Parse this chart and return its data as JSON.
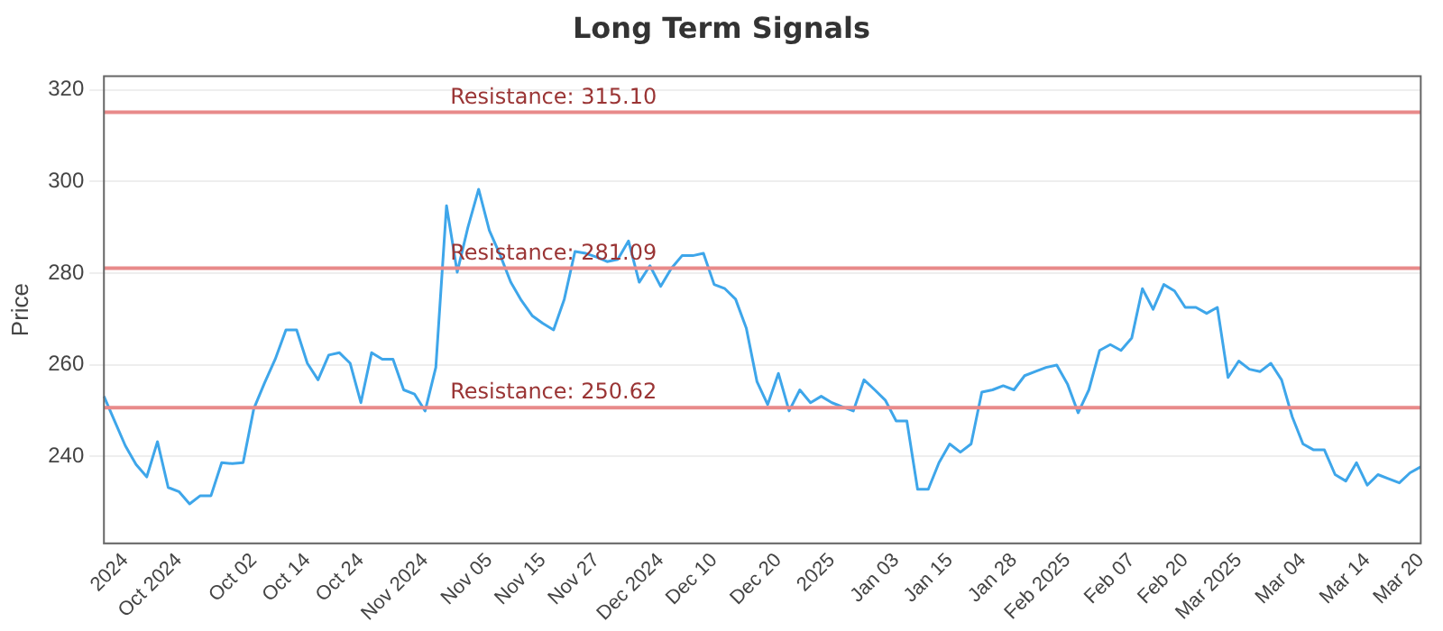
{
  "chart_data": {
    "type": "line",
    "title": "Long Term Signals",
    "ylabel": "Price",
    "categories": [
      null,
      null,
      "2024",
      null,
      null,
      null,
      null,
      "Oct 2024",
      null,
      null,
      null,
      null,
      null,
      null,
      "Oct 02",
      null,
      null,
      null,
      null,
      "Oct 14",
      null,
      null,
      null,
      null,
      "Oct 24",
      null,
      null,
      null,
      null,
      null,
      "Nov 2024",
      null,
      null,
      null,
      null,
      null,
      "Nov 05",
      null,
      null,
      null,
      null,
      "Nov 15",
      null,
      null,
      null,
      null,
      "Nov 27",
      null,
      null,
      null,
      null,
      null,
      "Dec 2024",
      null,
      null,
      null,
      null,
      "Dec 10",
      null,
      null,
      null,
      null,
      null,
      "Dec 20",
      null,
      null,
      null,
      null,
      "2025",
      null,
      null,
      null,
      null,
      null,
      "Jan 03",
      null,
      null,
      null,
      null,
      "Jan 15",
      null,
      null,
      null,
      null,
      null,
      "Jan 28",
      null,
      null,
      null,
      null,
      "Feb 2025",
      null,
      null,
      null,
      null,
      null,
      "Feb 07",
      null,
      null,
      null,
      null,
      "Feb 20",
      null,
      null,
      null,
      null,
      "Mar 2025",
      null,
      null,
      null,
      null,
      null,
      "Mar 04",
      null,
      null,
      null,
      null,
      null,
      "Mar 14",
      null,
      null,
      null,
      null,
      "Mar 20"
    ],
    "series": [
      {
        "color": "#3ea6ea",
        "values": [
          253.1,
          247.7,
          242.3,
          238.2,
          235.5,
          243.2,
          233.2,
          232.3,
          229.6,
          231.4,
          231.4,
          238.6,
          238.4,
          238.6,
          250.4,
          256,
          261.2,
          267.6,
          267.6,
          260.3,
          256.7,
          262.1,
          262.6,
          260.3,
          251.7,
          262.6,
          261.2,
          261.2,
          254.5,
          253.6,
          249.9,
          259.4,
          294.7,
          280.2,
          290,
          298.3,
          289.3,
          284,
          278,
          274,
          270.7,
          269,
          267.6,
          274.3,
          284.7,
          284.3,
          283.5,
          282.5,
          283,
          287,
          278,
          281.6,
          277.1,
          281,
          283.8,
          283.8,
          284.3,
          277.5,
          276.6,
          274.3,
          268,
          256.3,
          251.3,
          258.1,
          249.9,
          254.5,
          251.7,
          253.1,
          251.7,
          250.8,
          249.9,
          256.7,
          254.5,
          252.2,
          247.7,
          247.7,
          232.8,
          232.8,
          238.6,
          242.7,
          240.9,
          242.7,
          254,
          254.5,
          255.4,
          254.5,
          257.6,
          258.5,
          259.4,
          259.9,
          255.8,
          249.5,
          254.5,
          263.1,
          264.4,
          263.1,
          265.8,
          276.6,
          272.1,
          277.5,
          276.1,
          272.5,
          272.5,
          271.2,
          272.5,
          257.2,
          260.8,
          259,
          258.5,
          260.3,
          256.7,
          248.6,
          242.7,
          241.4,
          241.4,
          236,
          234.6,
          238.6,
          233.7,
          236,
          235.1,
          234.2,
          236.4,
          237.7
        ]
      }
    ],
    "ylim": [
      221,
      323
    ],
    "yticks": [
      240,
      260,
      280,
      300,
      320
    ],
    "grid": "y",
    "legend": false,
    "marker": "none",
    "line_style": "solid",
    "ref_lines": [
      {
        "axis": "y",
        "value": 315.1,
        "label": "Resistance: 315.10",
        "color": "#e88a8a"
      },
      {
        "axis": "y",
        "value": 281.09,
        "label": "Resistance: 281.09",
        "color": "#e88a8a"
      },
      {
        "axis": "y",
        "value": 250.62,
        "label": "Resistance: 250.62",
        "color": "#e88a8a"
      }
    ]
  }
}
